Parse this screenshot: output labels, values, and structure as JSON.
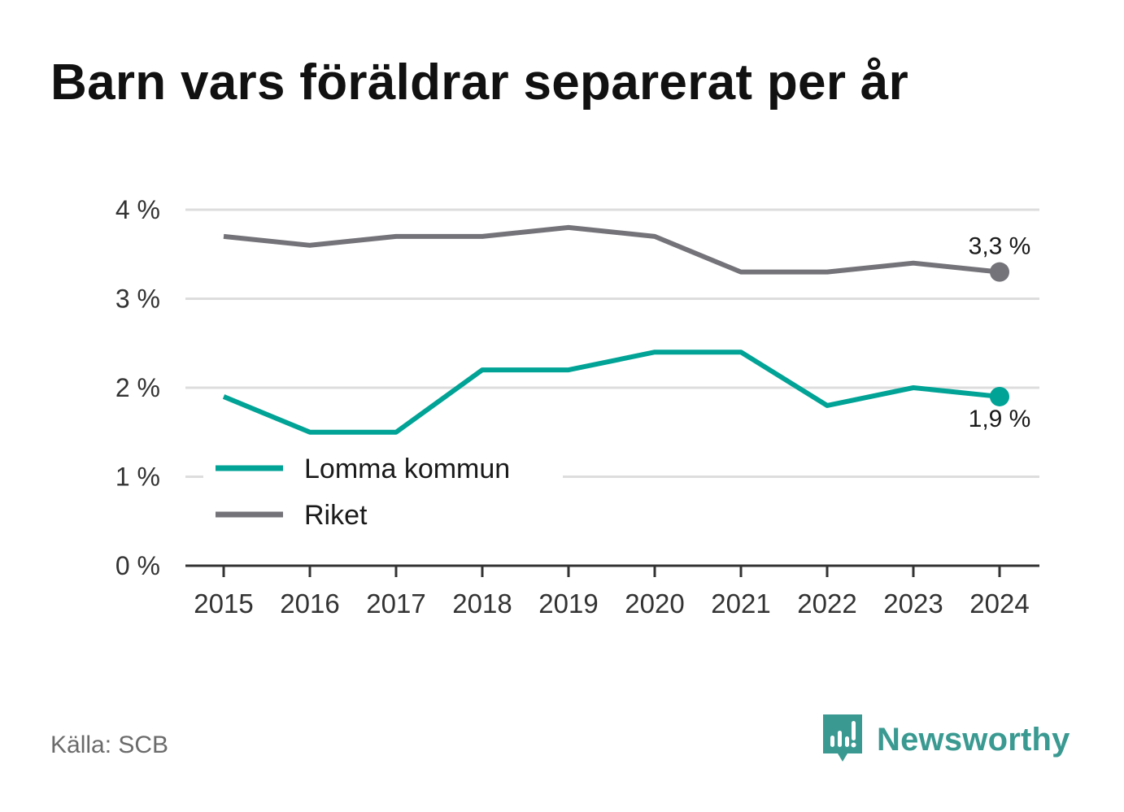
{
  "title": "Barn vars föräldrar separerat per år",
  "source": "Källa: SCB",
  "brand": {
    "name": "Newsworthy",
    "logo_icon": "newsworthy-logo-icon",
    "color": "#3a9a92"
  },
  "colors": {
    "lomma": "#00a396",
    "riket": "#737379",
    "grid": "#dddddd",
    "axis": "#333333"
  },
  "chart_data": {
    "type": "line",
    "title": "Barn vars föräldrar separerat per år",
    "xlabel": "",
    "ylabel": "",
    "ylim": [
      0,
      4
    ],
    "yticks": [
      {
        "value": 0,
        "label": "0 %"
      },
      {
        "value": 1,
        "label": "1 %"
      },
      {
        "value": 2,
        "label": "2 %"
      },
      {
        "value": 3,
        "label": "3 %"
      },
      {
        "value": 4,
        "label": "4 %"
      }
    ],
    "x": [
      "2015",
      "2016",
      "2017",
      "2018",
      "2019",
      "2020",
      "2021",
      "2022",
      "2023",
      "2024"
    ],
    "series": [
      {
        "name": "Lomma kommun",
        "color": "#00a396",
        "values": [
          1.9,
          1.5,
          1.5,
          2.2,
          2.2,
          2.4,
          2.4,
          1.8,
          2.0,
          1.9
        ],
        "end_label": "1,9 %",
        "end_label_position": "below"
      },
      {
        "name": "Riket",
        "color": "#737379",
        "values": [
          3.7,
          3.6,
          3.7,
          3.7,
          3.8,
          3.7,
          3.3,
          3.3,
          3.4,
          3.3
        ],
        "end_label": "3,3 %",
        "end_label_position": "above"
      }
    ],
    "grid": true,
    "legend": "bottom-left"
  }
}
